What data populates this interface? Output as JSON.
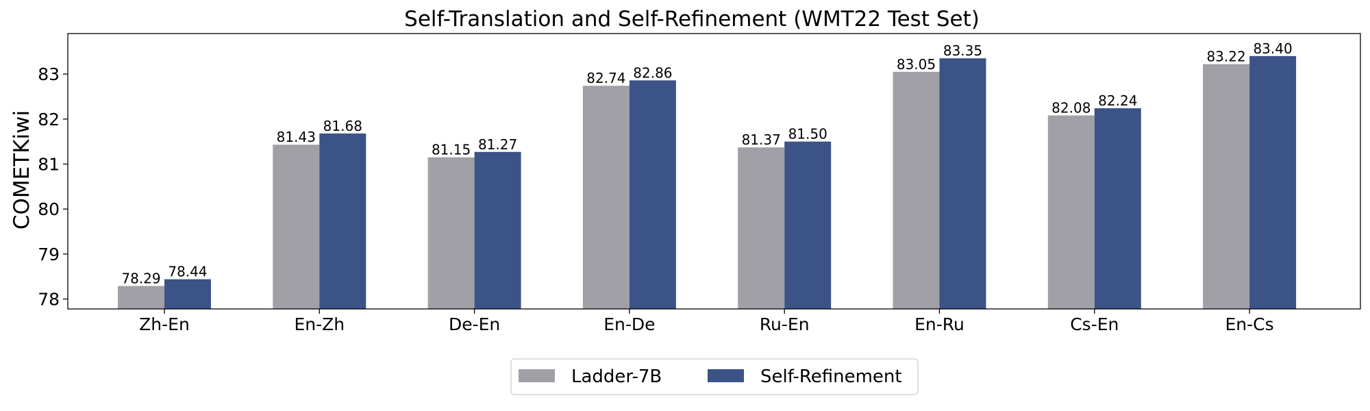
{
  "chart_data": {
    "type": "bar",
    "title": "Self-Translation and Self-Refinement (WMT22 Test Set)",
    "xlabel": "",
    "ylabel": "COMETKiwi",
    "categories": [
      "Zh-En",
      "En-Zh",
      "De-En",
      "En-De",
      "Ru-En",
      "En-Ru",
      "Cs-En",
      "En-Cs"
    ],
    "series": [
      {
        "name": "Ladder-7B",
        "color": "#a0a0a6",
        "values": [
          78.29,
          81.43,
          81.15,
          82.74,
          81.37,
          83.05,
          82.08,
          83.22
        ],
        "labels": [
          "78.29",
          "81.43",
          "81.15",
          "82.74",
          "81.37",
          "83.05",
          "82.08",
          "83.22"
        ]
      },
      {
        "name": "Self-Refinement",
        "color": "#3c5387",
        "values": [
          78.44,
          81.68,
          81.27,
          82.86,
          81.5,
          83.35,
          82.24,
          83.4
        ],
        "labels": [
          "78.44",
          "81.68",
          "81.27",
          "82.86",
          "81.50",
          "83.35",
          "82.24",
          "83.40"
        ]
      }
    ],
    "ylim": [
      77.78,
      83.9
    ],
    "yticks": [
      78,
      79,
      80,
      81,
      82,
      83
    ],
    "grid": false,
    "legend_position": "bottom-center"
  }
}
